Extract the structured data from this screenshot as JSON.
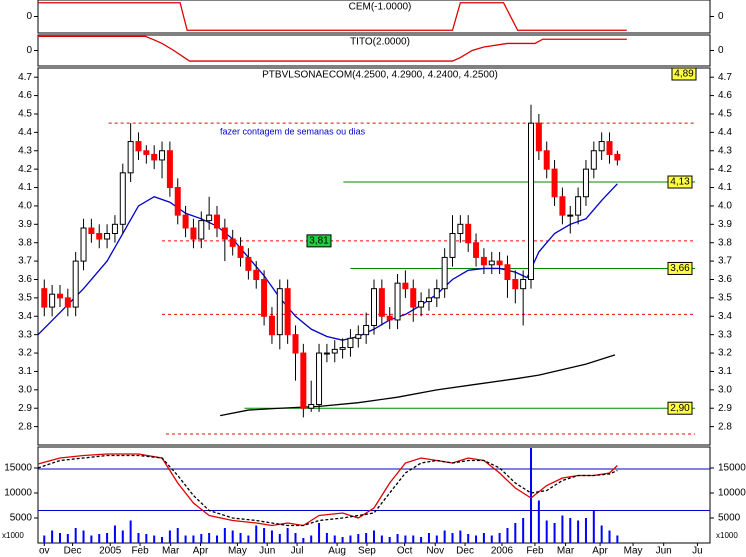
{
  "chart_data": [
    {
      "type": "step",
      "title": "CEM(-1.0000)",
      "x": [
        -0.8,
        17.3,
        18.2,
        52,
        53,
        58.5,
        60.3,
        74.2
      ],
      "series": [
        {
          "color": "#e00000",
          "values": [
            1,
            1,
            -1,
            -1,
            1,
            1,
            -1,
            -1
          ]
        }
      ],
      "ylim": [
        -1.2,
        1.2
      ],
      "yticks": [
        0
      ]
    },
    {
      "type": "step",
      "title": "TITO(2.0000)",
      "x": [
        -0.8,
        12.9,
        14,
        15,
        16.5,
        18.5,
        52,
        53,
        54.5,
        56,
        59,
        62.5,
        63.5,
        74.2
      ],
      "series": [
        {
          "color": "#e00000",
          "values": [
            2,
            2,
            1.5,
            1,
            0,
            -1.5,
            -1.5,
            -1,
            0,
            0.5,
            1,
            1,
            1.6,
            1.6
          ]
        }
      ],
      "ylim": [
        -2.2,
        2.2
      ],
      "yticks": [
        0
      ]
    },
    {
      "type": "candlestick",
      "title": "PTBVLSONAECOM(4.2500, 4.2900, 4.2400, 4.2500)",
      "open": [
        3.55,
        3.45,
        3.52,
        3.5,
        3.45,
        3.7,
        3.88,
        3.85,
        3.82,
        3.85,
        3.9,
        4.18,
        4.35,
        4.3,
        4.28,
        4.25,
        4.3,
        4.1,
        3.95,
        3.88,
        3.82,
        3.92,
        3.95,
        3.88,
        3.82,
        3.78,
        3.72,
        3.65,
        3.6,
        3.4,
        3.3,
        3.55,
        3.3,
        3.2,
        2.9,
        2.92,
        3.2,
        3.2,
        3.22,
        3.23,
        3.28,
        3.3,
        3.35,
        3.55,
        3.4,
        3.38,
        3.58,
        3.55,
        3.45,
        3.48,
        3.5,
        3.55,
        3.72,
        3.85,
        3.9,
        3.8,
        3.72,
        3.68,
        3.7,
        3.68,
        3.6,
        3.55,
        3.6,
        4.45,
        4.3,
        4.2,
        4.05,
        3.95,
        3.95,
        4.05,
        4.2,
        4.3,
        4.35,
        4.28
      ],
      "high": [
        3.6,
        3.57,
        3.57,
        3.55,
        3.75,
        3.93,
        3.93,
        3.9,
        3.9,
        3.95,
        4.23,
        4.45,
        4.4,
        4.33,
        4.33,
        4.35,
        4.35,
        4.15,
        4.0,
        3.93,
        3.97,
        4.05,
        4.0,
        3.93,
        3.87,
        3.83,
        3.77,
        3.7,
        3.65,
        3.45,
        3.6,
        3.6,
        3.35,
        3.25,
        3.05,
        3.25,
        3.25,
        3.27,
        3.28,
        3.33,
        3.35,
        3.42,
        3.6,
        3.6,
        3.45,
        3.63,
        3.65,
        3.6,
        3.53,
        3.55,
        3.6,
        3.77,
        3.95,
        3.95,
        3.95,
        3.85,
        3.77,
        3.75,
        3.75,
        3.73,
        3.65,
        3.65,
        4.55,
        4.5,
        4.35,
        4.25,
        4.1,
        4.0,
        4.1,
        4.25,
        4.35,
        4.4,
        4.4,
        4.3
      ],
      "low": [
        3.4,
        3.4,
        3.45,
        3.4,
        3.4,
        3.65,
        3.8,
        3.77,
        3.77,
        3.8,
        3.85,
        4.13,
        4.25,
        4.23,
        4.2,
        4.15,
        4.05,
        3.9,
        3.83,
        3.77,
        3.77,
        3.87,
        3.83,
        3.7,
        3.73,
        3.67,
        3.6,
        3.55,
        3.35,
        3.25,
        3.22,
        3.25,
        3.05,
        2.85,
        2.88,
        2.88,
        3.15,
        3.15,
        3.17,
        3.18,
        3.23,
        3.25,
        3.3,
        3.35,
        3.33,
        3.33,
        3.5,
        3.37,
        3.4,
        3.43,
        3.45,
        3.5,
        3.67,
        3.8,
        3.75,
        3.67,
        3.63,
        3.63,
        3.63,
        3.5,
        3.47,
        3.35,
        3.55,
        4.25,
        4.15,
        4.0,
        3.9,
        3.85,
        3.9,
        4.0,
        4.15,
        4.25,
        4.23,
        4.22
      ],
      "close": [
        3.45,
        3.52,
        3.5,
        3.45,
        3.7,
        3.88,
        3.85,
        3.82,
        3.85,
        3.9,
        4.18,
        4.35,
        4.3,
        4.28,
        4.25,
        4.3,
        4.1,
        3.95,
        3.88,
        3.82,
        3.92,
        3.95,
        3.88,
        3.82,
        3.78,
        3.72,
        3.65,
        3.6,
        3.4,
        3.3,
        3.55,
        3.3,
        3.2,
        2.9,
        2.92,
        3.2,
        3.2,
        3.22,
        3.23,
        3.28,
        3.3,
        3.35,
        3.55,
        3.4,
        3.38,
        3.58,
        3.55,
        3.45,
        3.48,
        3.5,
        3.55,
        3.72,
        3.85,
        3.9,
        3.8,
        3.72,
        3.68,
        3.7,
        3.68,
        3.6,
        3.55,
        3.6,
        4.45,
        4.3,
        4.2,
        4.05,
        3.95,
        3.95,
        4.05,
        4.2,
        4.3,
        4.35,
        4.28,
        4.25
      ],
      "up_color": "#ffffff",
      "down_color": "#ff0000",
      "xlim": [
        -0.8,
        84.8
      ],
      "ylim": [
        2.7,
        4.75
      ],
      "yticks": [
        2.8,
        2.9,
        {
          "value": 3,
          "label": "3.0"
        },
        3.1,
        3.2,
        3.3,
        3.4,
        3.5,
        3.6,
        3.7,
        3.8,
        3.9,
        {
          "value": 4,
          "label": "4.0"
        },
        4.1,
        4.2,
        4.3,
        4.4,
        4.5,
        4.6,
        4.7
      ],
      "xticks": [
        {
          "value": 0,
          "label": "ov"
        },
        {
          "value": 3.6,
          "label": "Dec"
        },
        {
          "value": 8.4,
          "label": "2005"
        },
        {
          "value": 12.2,
          "label": "Feb"
        },
        {
          "value": 16.1,
          "label": "Mar"
        },
        {
          "value": 19.9,
          "label": "Apr"
        },
        {
          "value": 24.6,
          "label": "May"
        },
        {
          "value": 28.4,
          "label": "Jun"
        },
        {
          "value": 32.2,
          "label": "Jul"
        },
        {
          "value": 37.3,
          "label": "Aug"
        },
        {
          "value": 41.1,
          "label": "Sep"
        },
        {
          "value": 45.9,
          "label": "Oct"
        },
        {
          "value": 49.8,
          "label": "Nov"
        },
        {
          "value": 53.6,
          "label": "Dec"
        },
        {
          "value": 58.3,
          "label": "2006"
        },
        {
          "value": 62.5,
          "label": "Feb"
        },
        {
          "value": 66.4,
          "label": "Mar"
        },
        {
          "value": 70.8,
          "label": "Apr"
        },
        {
          "value": 75,
          "label": "May"
        },
        {
          "value": 78.9,
          "label": "Jun"
        },
        {
          "value": 83.2,
          "label": "Ju"
        }
      ],
      "lines": [
        {
          "color": "#0000cc",
          "x": [
            -0.8,
            2,
            5,
            8,
            10,
            12,
            14,
            16,
            18,
            20,
            22,
            24,
            26,
            28,
            30,
            32,
            34,
            36,
            38,
            40,
            42,
            44,
            46,
            48,
            50,
            52,
            54,
            56,
            58,
            60,
            61.5,
            63,
            65,
            67,
            69,
            71,
            73
          ],
          "values": [
            3.3,
            3.42,
            3.55,
            3.7,
            3.85,
            4.0,
            4.05,
            4.02,
            3.96,
            3.93,
            3.89,
            3.82,
            3.72,
            3.62,
            3.5,
            3.4,
            3.33,
            3.29,
            3.27,
            3.29,
            3.33,
            3.38,
            3.41,
            3.46,
            3.52,
            3.6,
            3.65,
            3.66,
            3.66,
            3.64,
            3.61,
            3.75,
            3.85,
            3.9,
            3.93,
            4.03,
            4.12
          ]
        },
        {
          "color": "#000000",
          "x": [
            22.4,
            26,
            30,
            35,
            40,
            45,
            50,
            55,
            60,
            63,
            66,
            69,
            72.7
          ],
          "values": [
            2.86,
            2.89,
            2.9,
            2.91,
            2.93,
            2.96,
            3.0,
            3.03,
            3.06,
            3.08,
            3.11,
            3.14,
            3.19
          ]
        }
      ],
      "levels": [
        {
          "value": 4.45,
          "color": "#ff0000",
          "dash": true,
          "x": [
            8.2,
            82.9
          ]
        },
        {
          "value": 3.81,
          "color": "#ff0000",
          "dash": true,
          "x": [
            15,
            82.9
          ],
          "label": "3,81",
          "label_color": "#22cc44"
        },
        {
          "value": 3.41,
          "color": "#ff0000",
          "dash": true,
          "x": [
            15,
            82.9
          ]
        },
        {
          "value": 2.76,
          "color": "#ff0000",
          "dash": true,
          "x": [
            15.5,
            82.9
          ]
        },
        {
          "value": 4.13,
          "color": "#008800",
          "dash": false,
          "x": [
            38.1,
            82.9
          ],
          "label": "4,13",
          "label_color": "#ffff44"
        },
        {
          "value": 3.66,
          "color": "#008800",
          "dash": false,
          "x": [
            39,
            82.9
          ],
          "label": "3,66",
          "label_color": "#ffff44"
        },
        {
          "value": 2.9,
          "color": "#008800",
          "dash": false,
          "x": [
            25.5,
            82.9
          ],
          "label": "2,90",
          "label_color": "#ffff44"
        }
      ],
      "top_label": "4,89",
      "annotation": "fazer contagem de semanas ou dias"
    },
    {
      "type": "volume",
      "color": "#0000ff",
      "values": [
        1500,
        2500,
        2000,
        1800,
        3000,
        2500,
        1500,
        1800,
        2000,
        3500,
        2500,
        4500,
        2000,
        1800,
        1500,
        1200,
        2500,
        3000,
        1500,
        1500,
        1800,
        2000,
        1500,
        3000,
        2500,
        2000,
        1500,
        3500,
        3000,
        2500,
        1800,
        3000,
        2000,
        1000,
        1500,
        4000,
        2000,
        1500,
        1200,
        1500,
        1800,
        2000,
        2500,
        1500,
        1200,
        1800,
        1500,
        1500,
        1200,
        2000,
        1500,
        2500,
        2000,
        2500,
        1800,
        1500,
        2000,
        1500,
        2000,
        3000,
        4000,
        5000,
        19000,
        8500,
        4500,
        4000,
        5500,
        5000,
        4500,
        5000,
        6500,
        3500,
        2500,
        1500
      ],
      "ylim": [
        0,
        19200
      ],
      "yticks": [
        5000,
        10000,
        15000
      ],
      "hlines": [
        {
          "value": 14800,
          "color": "#0000cc"
        },
        {
          "value": 6500,
          "color": "#0000cc"
        }
      ],
      "lines": [
        {
          "color": "#e00000",
          "dash": false,
          "x": [
            -0.8,
            2,
            5,
            8,
            12,
            15,
            17,
            19,
            21,
            24,
            27,
            29,
            31,
            33,
            35,
            38,
            40,
            42,
            44,
            46,
            48,
            50,
            52,
            54,
            56,
            58,
            60,
            62,
            64,
            66,
            68,
            70,
            72,
            73
          ],
          "values": [
            15800,
            17000,
            17500,
            17800,
            17800,
            17000,
            12000,
            8000,
            5500,
            4500,
            4000,
            3500,
            4000,
            3500,
            5500,
            6000,
            5000,
            7000,
            12000,
            16000,
            17000,
            16500,
            16000,
            17000,
            16500,
            14000,
            11000,
            9000,
            11500,
            13000,
            13500,
            13500,
            14000,
            15500
          ]
        },
        {
          "color": "#000000",
          "dash": true,
          "x": [
            -0.8,
            2,
            5,
            8,
            12,
            15,
            17,
            19,
            21,
            24,
            27,
            29,
            31,
            33,
            35,
            38,
            40,
            42,
            44,
            46,
            48,
            50,
            52,
            54,
            56,
            58,
            60,
            62,
            64,
            66,
            68,
            70,
            72,
            73
          ],
          "values": [
            15000,
            16500,
            17000,
            17500,
            17500,
            17000,
            13500,
            9500,
            6500,
            5000,
            4500,
            4000,
            3500,
            3500,
            4500,
            5000,
            5500,
            6000,
            10000,
            14000,
            16000,
            16500,
            16000,
            16500,
            16500,
            15000,
            12000,
            10000,
            10500,
            12500,
            13500,
            13500,
            13800,
            14500
          ]
        }
      ],
      "unit_label": "x1000"
    }
  ]
}
